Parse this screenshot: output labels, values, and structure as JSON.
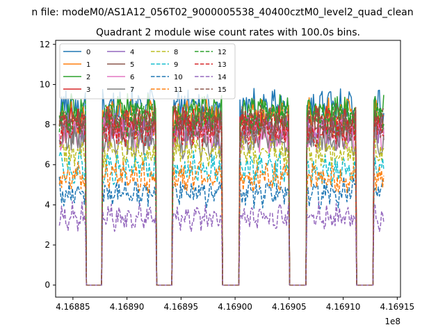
{
  "chart_data": {
    "type": "line",
    "suptitle": "n file: modeM0/AS1A12_056T02_9000005538_40400cztM0_level2_quad_clean",
    "title": "Quadrant 2 module wise count rates with 100.0s bins.",
    "xlabel": "",
    "ylabel": "",
    "x_offset_label": "1e8",
    "xlim": [
      4.168834,
      4.169153
    ],
    "ylim": [
      -0.6,
      12.2
    ],
    "x_ticks": [
      4.16885,
      4.1689,
      4.16895,
      4.169,
      4.16905,
      4.1691,
      4.16915
    ],
    "x_tick_labels": [
      "4.16885",
      "4.16890",
      "4.16895",
      "4.16900",
      "4.16905",
      "4.16910",
      "4.16915"
    ],
    "y_ticks": [
      0,
      2,
      4,
      6,
      8,
      10,
      12
    ],
    "y_tick_labels": [
      "0",
      "2",
      "4",
      "6",
      "8",
      "10",
      "12"
    ],
    "grid": false,
    "legend_position": "top-left",
    "active_intervals": [
      [
        4.168837,
        4.168862
      ],
      [
        4.168877,
        4.168927
      ],
      [
        4.168942,
        4.168988
      ],
      [
        4.169004,
        4.16905
      ],
      [
        4.169066,
        4.169112
      ],
      [
        4.169128,
        4.169138
      ]
    ],
    "series": [
      {
        "name": "0",
        "level": 8.9,
        "color": "#1f77b4",
        "dashed": false
      },
      {
        "name": "1",
        "level": 8.4,
        "color": "#ff7f0e",
        "dashed": false
      },
      {
        "name": "2",
        "level": 8.6,
        "color": "#2ca02c",
        "dashed": false
      },
      {
        "name": "3",
        "level": 8.0,
        "color": "#d62728",
        "dashed": false
      },
      {
        "name": "4",
        "level": 7.7,
        "color": "#9467bd",
        "dashed": false
      },
      {
        "name": "5",
        "level": 7.9,
        "color": "#8c564b",
        "dashed": false
      },
      {
        "name": "6",
        "level": 7.5,
        "color": "#e377c2",
        "dashed": false
      },
      {
        "name": "7",
        "level": 7.2,
        "color": "#7f7f7f",
        "dashed": false
      },
      {
        "name": "8",
        "level": 6.6,
        "color": "#bcbd22",
        "dashed": true
      },
      {
        "name": "9",
        "level": 5.8,
        "color": "#17becf",
        "dashed": true
      },
      {
        "name": "10",
        "level": 4.6,
        "color": "#1f77b4",
        "dashed": true
      },
      {
        "name": "11",
        "level": 5.4,
        "color": "#ff7f0e",
        "dashed": true
      },
      {
        "name": "12",
        "level": 8.3,
        "color": "#2ca02c",
        "dashed": true
      },
      {
        "name": "13",
        "level": 7.8,
        "color": "#d62728",
        "dashed": true
      },
      {
        "name": "14",
        "level": 3.4,
        "color": "#9467bd",
        "dashed": true
      },
      {
        "name": "15",
        "level": 8.1,
        "color": "#8c564b",
        "dashed": true
      }
    ]
  }
}
